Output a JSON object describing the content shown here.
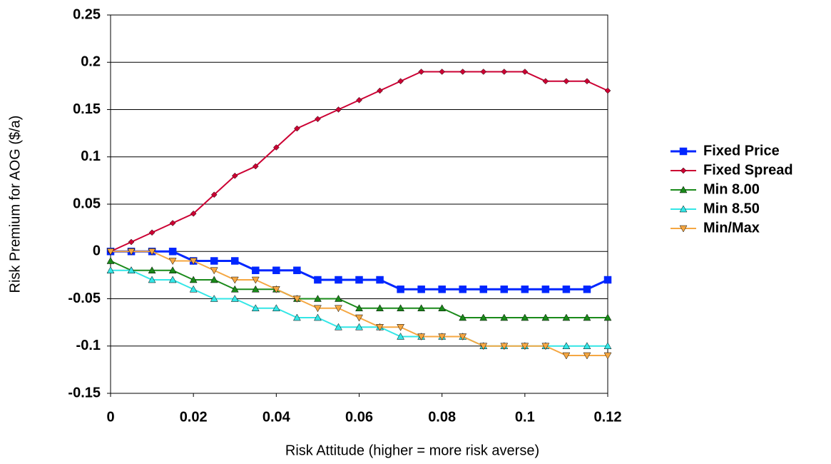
{
  "chart_data": {
    "type": "line",
    "x_label": "Risk Attitude (higher = more risk averse)",
    "y_label": "Risk Premium for AOG ($/a)",
    "x": [
      0,
      0.005,
      0.01,
      0.015,
      0.02,
      0.025,
      0.03,
      0.035,
      0.04,
      0.045,
      0.05,
      0.055,
      0.06,
      0.065,
      0.07,
      0.075,
      0.08,
      0.085,
      0.09,
      0.095,
      0.1,
      0.105,
      0.11,
      0.115,
      0.12
    ],
    "series": [
      {
        "name": "Fixed Price",
        "color": "#0026ff",
        "marker": "square",
        "values": [
          0,
          0,
          0,
          0,
          -0.01,
          -0.01,
          -0.01,
          -0.02,
          -0.02,
          -0.02,
          -0.03,
          -0.03,
          -0.03,
          -0.03,
          -0.04,
          -0.04,
          -0.04,
          -0.04,
          -0.04,
          -0.04,
          -0.04,
          -0.04,
          -0.04,
          -0.04,
          -0.03
        ]
      },
      {
        "name": "Fixed Spread",
        "color": "#cc0033",
        "marker": "diamond",
        "values": [
          0,
          0.01,
          0.02,
          0.03,
          0.04,
          0.06,
          0.08,
          0.09,
          0.11,
          0.13,
          0.14,
          0.15,
          0.16,
          0.17,
          0.18,
          0.19,
          0.19,
          0.19,
          0.19,
          0.19,
          0.19,
          0.18,
          0.18,
          0.18,
          0.17
        ]
      },
      {
        "name": "Min 8.00",
        "color": "#1a8a1a",
        "marker": "triangle-up",
        "values": [
          -0.01,
          -0.02,
          -0.02,
          -0.02,
          -0.03,
          -0.03,
          -0.04,
          -0.04,
          -0.04,
          -0.05,
          -0.05,
          -0.05,
          -0.06,
          -0.06,
          -0.06,
          -0.06,
          -0.06,
          -0.07,
          -0.07,
          -0.07,
          -0.07,
          -0.07,
          -0.07,
          -0.07,
          -0.07
        ]
      },
      {
        "name": "Min 8.50",
        "color": "#33e6e6",
        "marker": "triangle-up",
        "values": [
          -0.02,
          -0.02,
          -0.03,
          -0.03,
          -0.04,
          -0.05,
          -0.05,
          -0.06,
          -0.06,
          -0.07,
          -0.07,
          -0.08,
          -0.08,
          -0.08,
          -0.09,
          -0.09,
          -0.09,
          -0.09,
          -0.1,
          -0.1,
          -0.1,
          -0.1,
          -0.1,
          -0.1,
          -0.1
        ]
      },
      {
        "name": "Min/Max",
        "color": "#f5a742",
        "marker": "triangle-down",
        "values": [
          0,
          0,
          0,
          -0.01,
          -0.01,
          -0.02,
          -0.03,
          -0.03,
          -0.04,
          -0.05,
          -0.06,
          -0.06,
          -0.07,
          -0.08,
          -0.08,
          -0.09,
          -0.09,
          -0.09,
          -0.1,
          -0.1,
          -0.1,
          -0.1,
          -0.11,
          -0.11,
          -0.11
        ]
      }
    ],
    "xlim": [
      0,
      0.12
    ],
    "xticks": [
      0,
      0.02,
      0.04,
      0.06,
      0.08,
      0.1,
      0.12
    ],
    "ylim": [
      -0.15,
      0.25
    ],
    "yticks": [
      -0.15,
      -0.1,
      -0.05,
      0,
      0.05,
      0.1,
      0.15,
      0.2,
      0.25
    ],
    "grid": true,
    "legend": "right"
  }
}
